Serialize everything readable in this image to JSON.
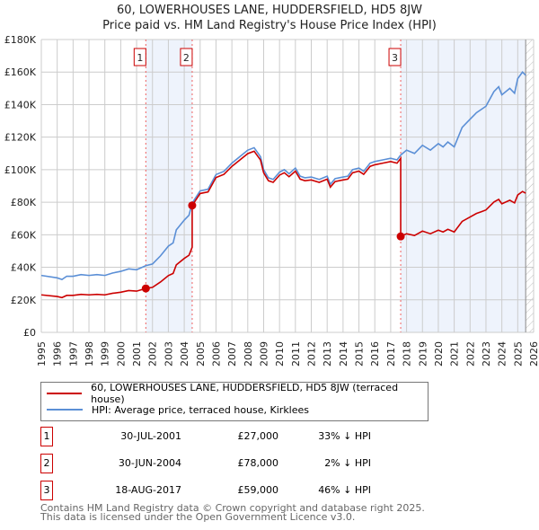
{
  "title": "60, LOWERHOUSES LANE, HUDDERSFIELD, HD5 8JW",
  "subtitle": "Price paid vs. HM Land Registry's House Price Index (HPI)",
  "legend": {
    "property": "60, LOWERHOUSES LANE, HUDDERSFIELD, HD5 8JW (terraced house)",
    "hpi": "HPI: Average price, terraced house, Kirklees"
  },
  "sales": [
    {
      "num": "1",
      "date": "30-JUL-2001",
      "price": "£27,000",
      "hpi": "33% ↓ HPI"
    },
    {
      "num": "2",
      "date": "30-JUN-2004",
      "price": "£78,000",
      "hpi": "2% ↓ HPI"
    },
    {
      "num": "3",
      "date": "18-AUG-2017",
      "price": "£59,000",
      "hpi": "46% ↓ HPI"
    }
  ],
  "footer": {
    "line1": "Contains HM Land Registry data © Crown copyright and database right 2025.",
    "line2": "This data is licensed under the Open Government Licence v3.0."
  },
  "chart_data": {
    "type": "line",
    "xlim": [
      1995,
      2026
    ],
    "ylim": [
      0,
      180000
    ],
    "yticks": [
      {
        "v": 0,
        "l": "£0"
      },
      {
        "v": 20000,
        "l": "£20K"
      },
      {
        "v": 40000,
        "l": "£40K"
      },
      {
        "v": 60000,
        "l": "£60K"
      },
      {
        "v": 80000,
        "l": "£80K"
      },
      {
        "v": 100000,
        "l": "£100K"
      },
      {
        "v": 120000,
        "l": "£120K"
      },
      {
        "v": 140000,
        "l": "£140K"
      },
      {
        "v": 160000,
        "l": "£160K"
      },
      {
        "v": 180000,
        "l": "£180K"
      }
    ],
    "xticks": [
      "1995",
      "1996",
      "1997",
      "1998",
      "1999",
      "2000",
      "2001",
      "2002",
      "2003",
      "2004",
      "2005",
      "2006",
      "2007",
      "2008",
      "2009",
      "2010",
      "2011",
      "2012",
      "2013",
      "2014",
      "2015",
      "2016",
      "2017",
      "2018",
      "2019",
      "2020",
      "2021",
      "2022",
      "2023",
      "2024",
      "2025",
      "2026"
    ],
    "sale_points": [
      {
        "label": "1",
        "x": 2001.58,
        "y": 27000
      },
      {
        "label": "2",
        "x": 2004.5,
        "y": 78000
      },
      {
        "label": "3",
        "x": 2017.63,
        "y": 59000
      }
    ],
    "colors": {
      "property": "#cc0000",
      "hpi": "#5b8fd6",
      "shade": "#eef3fc"
    },
    "hpi": [
      [
        1995,
        35000
      ],
      [
        1996,
        33500
      ],
      [
        1996.3,
        32500
      ],
      [
        1996.6,
        34500
      ],
      [
        1997,
        34500
      ],
      [
        1997.5,
        35500
      ],
      [
        1998,
        35000
      ],
      [
        1998.5,
        35500
      ],
      [
        1999,
        35000
      ],
      [
        1999.5,
        36500
      ],
      [
        2000,
        37500
      ],
      [
        2000.5,
        39000
      ],
      [
        2001,
        38500
      ],
      [
        2001.58,
        41000
      ],
      [
        2002,
        42000
      ],
      [
        2002.5,
        47000
      ],
      [
        2003,
        53000
      ],
      [
        2003.3,
        55000
      ],
      [
        2003.5,
        63000
      ],
      [
        2004,
        69000
      ],
      [
        2004.3,
        72000
      ],
      [
        2004.5,
        79500
      ],
      [
        2005,
        87000
      ],
      [
        2005.5,
        88000
      ],
      [
        2006,
        97000
      ],
      [
        2006.5,
        99000
      ],
      [
        2007,
        104000
      ],
      [
        2007.5,
        108000
      ],
      [
        2008,
        112000
      ],
      [
        2008.4,
        113500
      ],
      [
        2008.8,
        108000
      ],
      [
        2009,
        100000
      ],
      [
        2009.3,
        95000
      ],
      [
        2009.6,
        94000
      ],
      [
        2010,
        98500
      ],
      [
        2010.3,
        100000
      ],
      [
        2010.6,
        97500
      ],
      [
        2011,
        101000
      ],
      [
        2011.3,
        96000
      ],
      [
        2011.6,
        95000
      ],
      [
        2012,
        95500
      ],
      [
        2012.5,
        94000
      ],
      [
        2013,
        96000
      ],
      [
        2013.2,
        91000
      ],
      [
        2013.5,
        94500
      ],
      [
        2014,
        95500
      ],
      [
        2014.3,
        96000
      ],
      [
        2014.6,
        100000
      ],
      [
        2015,
        101000
      ],
      [
        2015.3,
        99000
      ],
      [
        2015.7,
        104000
      ],
      [
        2016,
        105000
      ],
      [
        2016.5,
        106000
      ],
      [
        2017,
        107000
      ],
      [
        2017.4,
        106000
      ],
      [
        2017.63,
        109000
      ],
      [
        2018,
        112000
      ],
      [
        2018.5,
        110000
      ],
      [
        2019,
        115000
      ],
      [
        2019.5,
        112000
      ],
      [
        2020,
        116000
      ],
      [
        2020.3,
        114000
      ],
      [
        2020.6,
        117000
      ],
      [
        2021,
        114000
      ],
      [
        2021.5,
        126000
      ],
      [
        2022,
        131000
      ],
      [
        2022.4,
        135000
      ],
      [
        2022.7,
        137000
      ],
      [
        2023,
        139000
      ],
      [
        2023.5,
        148000
      ],
      [
        2023.8,
        151000
      ],
      [
        2024,
        146000
      ],
      [
        2024.5,
        150000
      ],
      [
        2024.8,
        147000
      ],
      [
        2025,
        156000
      ],
      [
        2025.3,
        160000
      ],
      [
        2025.5,
        158000
      ]
    ]
  }
}
